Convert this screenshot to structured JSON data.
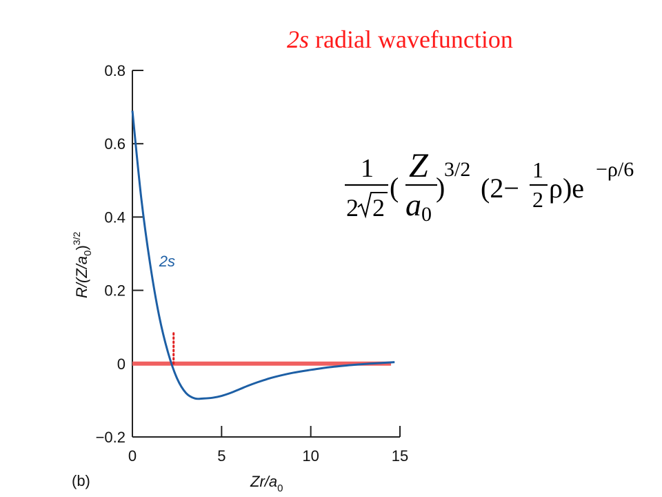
{
  "slide": {
    "title_italic": "2s",
    "title_rest": " radial wavefunction",
    "title_color": "#ff1a1a"
  },
  "chart_data": {
    "type": "line",
    "panel_label": "(b)",
    "xlabel_main": "Zr/a",
    "xlabel_sub": "0",
    "ylabel_main": "R/(Z/a",
    "ylabel_sub": "0",
    "ylabel_close": ")",
    "ylabel_exp": "3/2",
    "xlim": [
      0,
      15
    ],
    "ylim": [
      -0.2,
      0.8
    ],
    "x_ticks": [
      "0",
      "5",
      "10",
      "15"
    ],
    "x_tick_values": [
      0,
      5,
      10,
      15
    ],
    "y_ticks": [
      "−0.2",
      "0",
      "0.2",
      "0.4",
      "0.6",
      "0.8"
    ],
    "y_tick_values": [
      -0.2,
      0,
      0.2,
      0.4,
      0.6,
      0.8
    ],
    "series": [
      {
        "name": "2s",
        "color": "#1d5fa5",
        "x": [
          0,
          0.5,
          1,
          1.5,
          2,
          2.5,
          3,
          3.5,
          4,
          4.5,
          5,
          5.5,
          6,
          6.5,
          7,
          7.5,
          8,
          9,
          10,
          11,
          12,
          13,
          14,
          14.7
        ],
        "y": [
          0.69,
          0.45,
          0.27,
          0.13,
          0.03,
          -0.04,
          -0.08,
          -0.095,
          -0.095,
          -0.093,
          -0.088,
          -0.08,
          -0.07,
          -0.06,
          -0.051,
          -0.043,
          -0.036,
          -0.025,
          -0.017,
          -0.01,
          -0.005,
          -0.001,
          0.002,
          0.004
        ]
      }
    ],
    "zero_line": {
      "color": "#f06060",
      "x": [
        0,
        14.5
      ],
      "y": 0
    },
    "node_marker": {
      "color": "#e02020",
      "x": 2,
      "y": [
        0,
        0.09
      ]
    },
    "series_label": {
      "text": "2s",
      "x": 1.5,
      "y": 0.28
    }
  },
  "equation": {
    "coef_num": "1",
    "coef_den_left": "2",
    "coef_den_root": "2",
    "open_paren": "(",
    "frac_num": "Z",
    "frac_den": "a",
    "frac_den_sub": "0",
    "close_paren": ")",
    "power": "3/2",
    "factor_left": "(2−",
    "half_num": "1",
    "half_den": "2",
    "factor_right": "ρ)e",
    "exp": "−ρ/6"
  }
}
